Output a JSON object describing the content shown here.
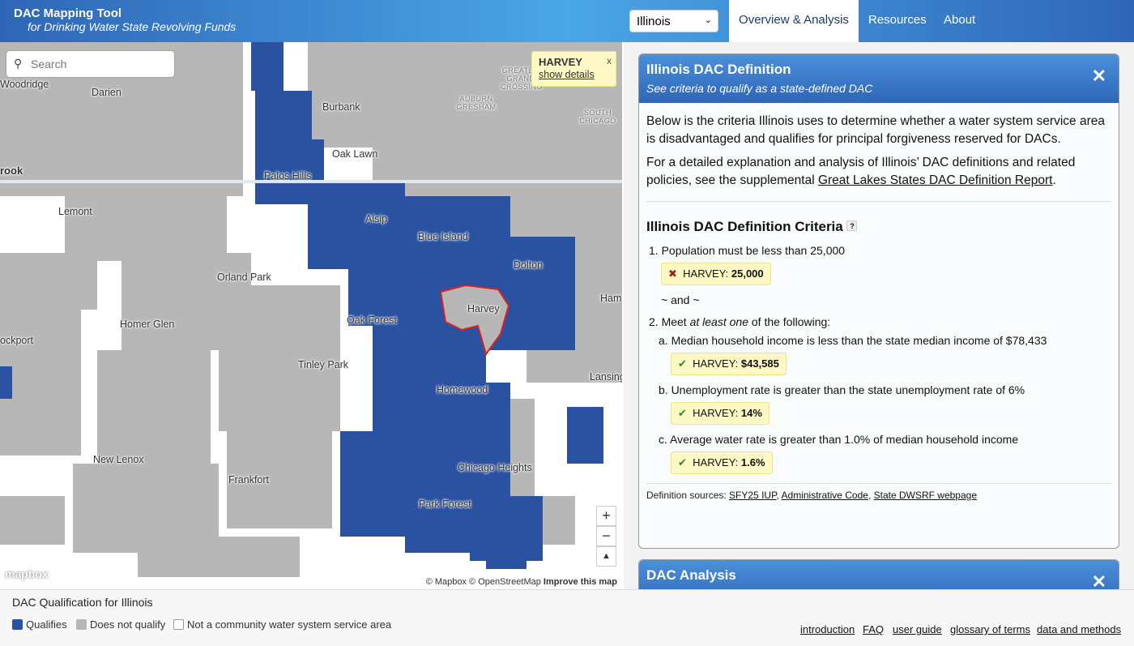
{
  "header": {
    "title": "DAC Mapping Tool",
    "subtitle": "for Drinking Water State Revolving Funds",
    "state_selected": "Illinois",
    "tabs": [
      {
        "label": "Overview & Analysis",
        "active": true
      },
      {
        "label": "Resources"
      },
      {
        "label": "About"
      }
    ]
  },
  "map": {
    "search_placeholder": "Search",
    "popup": {
      "name": "HARVEY",
      "link": "show details",
      "close": "x"
    },
    "labels": [
      "Woodridge",
      "Darien",
      "Burbank",
      "Oak Lawn",
      "Palos Hills",
      "rook",
      "Lemont",
      "Alsip",
      "Blue Island",
      "Dolton",
      "Orland Park",
      "Harvey",
      "Oak Forest",
      "Ham",
      "Homer Glen",
      "ockport",
      "Tinley Park",
      "Homewood",
      "Lansing",
      "New Lenox",
      "Chicago Heights",
      "Frankfort",
      "Park Forest",
      "GREATER GRAND CROSSING",
      "AUBURN GRESHAM",
      "SOUTH CHICAGO"
    ],
    "zoom_in": "+",
    "zoom_out": "−",
    "compass": "▲",
    "logo": "mapbox",
    "attribution": "© Mapbox © OpenStreetMap",
    "improve": "Improve this map",
    "colors": {
      "qualifies": "#2a52a0",
      "not_qualify": "#b7b7b7",
      "outline": "#e02020"
    }
  },
  "definition": {
    "title": "Illinois DAC Definition",
    "subtitle": "See criteria to qualify as a state-defined DAC",
    "close": "✕",
    "intro": "Below is the criteria Illinois uses to determine whether a water system service area is disadvantaged and qualifies for principal forgiveness reserved for DACs.",
    "detail_pre": "For a detailed explanation and analysis of Illinois’ DAC definitions and related policies, see the supplemental ",
    "detail_link": "Great Lakes States DAC Definition Report",
    "detail_post": ".",
    "criteria_title": "Illinois DAC Definition Criteria",
    "help": "?",
    "c1": "1. Population must be less than 25,000",
    "c1_badge": {
      "icon": "✖",
      "label": "HARVEY: ",
      "value": "25,000"
    },
    "and": "~ and ~",
    "c2_pre": "2. Meet ",
    "c2_em": "at least one",
    "c2_post": " of the following:",
    "sub": [
      {
        "text": "a. Median household income is less than the state median income of $78,433",
        "icon": "✔",
        "label": "HARVEY: ",
        "value": "$43,585"
      },
      {
        "text": "b. Unemployment rate is greater than the state unemployment rate of 6%",
        "icon": "✔",
        "label": "HARVEY: ",
        "value": "14%"
      },
      {
        "text": "c. Average water rate is greater than 1.0% of median household income",
        "icon": "✔",
        "label": "HARVEY: ",
        "value": "1.6%"
      }
    ],
    "sources_label": "Definition sources: ",
    "sources": [
      "SFY25 IUP",
      "Administrative Code",
      "State DWSRF webpage"
    ]
  },
  "analysis": {
    "title": "DAC Analysis",
    "close": "✕"
  },
  "footer": {
    "legend_title": "DAC Qualification for Illinois",
    "legend": [
      "Qualifies",
      "Does not qualify",
      "Not a community water system service area"
    ],
    "links": [
      "introduction",
      "FAQ",
      "user guide",
      "glossary of terms",
      "data and methods"
    ]
  }
}
